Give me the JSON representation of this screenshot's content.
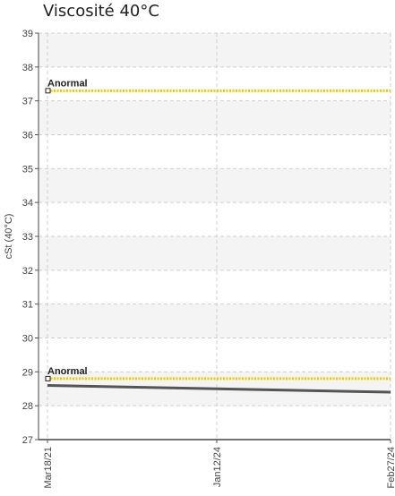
{
  "chart_data": {
    "type": "line",
    "title": "Viscosité 40°C",
    "xlabel": "",
    "ylabel": "cSt (40°C)",
    "ylim": [
      27,
      39
    ],
    "yticks": [
      27,
      28,
      29,
      30,
      31,
      32,
      33,
      34,
      35,
      36,
      37,
      38,
      39
    ],
    "x_range": [
      "2021-03-18",
      "2024-02-27"
    ],
    "xticks": [
      {
        "date": "2021-03-18",
        "label": "Mar18/21"
      },
      {
        "date": "2024-01-12",
        "label": "Jan12/24"
      },
      {
        "date": "2024-02-27",
        "label": "Feb27/24"
      }
    ],
    "grid": true,
    "series": [
      {
        "color": "#555555",
        "points": [
          {
            "x": "2021-03-18",
            "y": 28.6
          },
          {
            "x": "2024-01-12",
            "y": 28.5
          },
          {
            "x": "2024-02-27",
            "y": 28.4
          }
        ]
      }
    ],
    "thresholds": [
      {
        "label": "Anormal",
        "y": 37.3,
        "color": "#f0c800"
      },
      {
        "label": "Anormal",
        "y": 28.8,
        "color": "#f0c800"
      }
    ]
  }
}
